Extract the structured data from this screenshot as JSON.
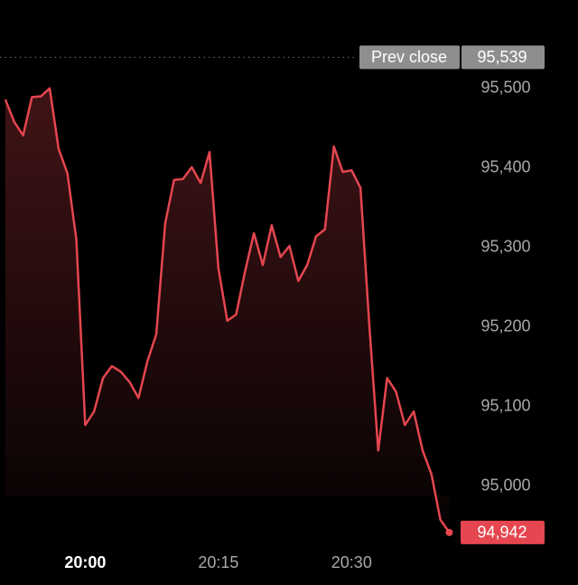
{
  "chart_data": {
    "type": "line",
    "x": [
      1191,
      1192,
      1193,
      1194,
      1195,
      1196,
      1197,
      1198,
      1199,
      1200,
      1201,
      1202,
      1203,
      1204,
      1205,
      1206,
      1207,
      1208,
      1209,
      1210,
      1211,
      1212,
      1213,
      1214,
      1215,
      1216,
      1217,
      1218,
      1219,
      1220,
      1221,
      1222,
      1223,
      1224,
      1225,
      1226,
      1227,
      1228,
      1229,
      1230,
      1231,
      1232,
      1233,
      1234,
      1235,
      1236,
      1237,
      1238,
      1239,
      1240,
      1241
    ],
    "values": [
      95486,
      95458,
      95441,
      95489,
      95490,
      95500,
      95424,
      95393,
      95310,
      95077,
      95094,
      95136,
      95151,
      95144,
      95131,
      95111,
      95157,
      95191,
      95330,
      95385,
      95386,
      95401,
      95381,
      95420,
      95274,
      95208,
      95216,
      95270,
      95318,
      95278,
      95328,
      95288,
      95302,
      95258,
      95278,
      95314,
      95323,
      95427,
      95395,
      95397,
      95375,
      95202,
      95045,
      95136,
      95119,
      95077,
      95094,
      95045,
      95015,
      94958,
      94942
    ],
    "value_labels": [
      null,
      null,
      null,
      null,
      null,
      null,
      null,
      null,
      null,
      null,
      null,
      null,
      null,
      null,
      null,
      null,
      null,
      null,
      null,
      null,
      null,
      null,
      null,
      null,
      null,
      null,
      null,
      null,
      null,
      null,
      null,
      null,
      null,
      null,
      null,
      null,
      null,
      null,
      null,
      null,
      null,
      null,
      null,
      null,
      null,
      null,
      null,
      null,
      null,
      null,
      "94,942"
    ],
    "color": "#e5464f",
    "xlim": [
      1190.4,
      1255.5
    ],
    "xticks": [
      {
        "value": 1200,
        "label": "20:00"
      },
      {
        "value": 1215,
        "label": "20:15"
      },
      {
        "value": 1230,
        "label": "20:30"
      }
    ],
    "ylim": [
      94876,
      95611
    ],
    "yticks": [
      {
        "value": 95000,
        "label": "95,000"
      },
      {
        "value": 95100,
        "label": "95,100"
      },
      {
        "value": 95200,
        "label": "95,200"
      },
      {
        "value": 95300,
        "label": "95,300"
      },
      {
        "value": 95400,
        "label": "95,400"
      },
      {
        "value": 95500,
        "label": "95,500"
      }
    ],
    "reference_line": {
      "label": "Prev close",
      "value": 95539,
      "value_label": "95,539"
    }
  }
}
